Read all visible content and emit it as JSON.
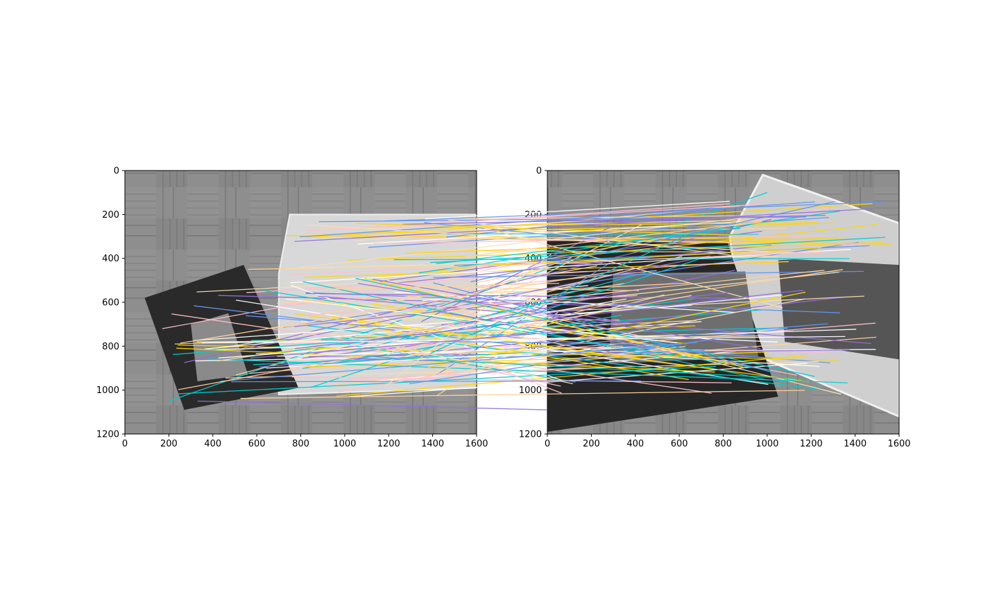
{
  "chart_data": {
    "type": "scatter",
    "title": "",
    "description_type": "feature-match visualization (two grayscale images with colored correspondence lines)",
    "subplots": [
      {
        "name": "left-image",
        "xlim": [
          0,
          1600
        ],
        "ylim": [
          1200,
          0
        ],
        "xticks": [
          0,
          200,
          400,
          600,
          800,
          1000,
          1200,
          1400,
          1600
        ],
        "yticks": [
          0,
          200,
          400,
          600,
          800,
          1000,
          1200
        ],
        "xtick_labels": [
          "0",
          "200",
          "400",
          "600",
          "800",
          "1000",
          "1200",
          "1400",
          "1600"
        ],
        "ytick_labels": [
          "0",
          "200",
          "400",
          "600",
          "800",
          "1000",
          "1200"
        ]
      },
      {
        "name": "right-image",
        "xlim": [
          0,
          1600
        ],
        "ylim": [
          1200,
          0
        ],
        "xticks": [
          0,
          200,
          400,
          600,
          800,
          1000,
          1200,
          1400,
          1600
        ],
        "yticks": [
          0,
          200,
          400,
          600,
          800,
          1000,
          1200
        ],
        "xtick_labels": [
          "0",
          "200",
          "400",
          "600",
          "800",
          "1000",
          "1200",
          "1400",
          "1600"
        ],
        "ytick_labels": [
          "0",
          "200",
          "400",
          "600",
          "800",
          "1000",
          "1200"
        ]
      }
    ],
    "line_colors": [
      "#ffd39b",
      "#ffd700",
      "#9370db",
      "#00ced1",
      "#ffc0cb",
      "#ffffff",
      "#6495ed",
      "#f5deb3"
    ],
    "match_count": 180,
    "sample_matches": [
      {
        "x1": 560,
        "y1": 450,
        "x2": 250,
        "y2": 420
      },
      {
        "x1": 900,
        "y1": 290,
        "x2": 1300,
        "y2": 240
      },
      {
        "x1": 330,
        "y1": 1050,
        "x2": 0,
        "y2": 1090
      },
      {
        "x1": 200,
        "y1": 1050,
        "x2": 1000,
        "y2": 100
      },
      {
        "x1": 170,
        "y1": 720,
        "x2": 1280,
        "y2": 170
      }
    ]
  }
}
